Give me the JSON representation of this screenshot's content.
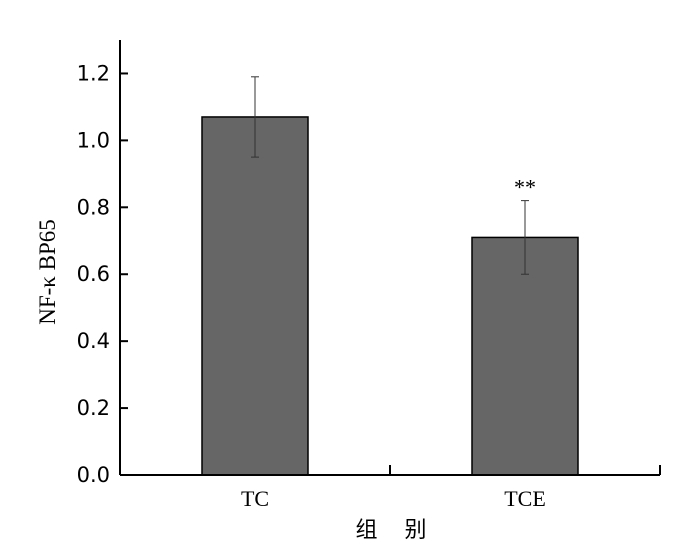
{
  "chart_data": {
    "type": "bar",
    "categories": [
      "TC",
      "TCE"
    ],
    "series": [
      {
        "values": [
          1.07,
          0.71
        ],
        "errors": [
          0.12,
          0.11
        ]
      }
    ],
    "annotations": [
      "",
      "**"
    ],
    "title": "",
    "xlabel": "组 别",
    "ylabel": "NF-κ BP65",
    "ylim": [
      0,
      1.3
    ],
    "yticks": [
      "0.0",
      "0.2",
      "0.4",
      "0.6",
      "0.8",
      "1.0",
      "1.2"
    ],
    "grid": false,
    "bar_color": "#666666"
  }
}
